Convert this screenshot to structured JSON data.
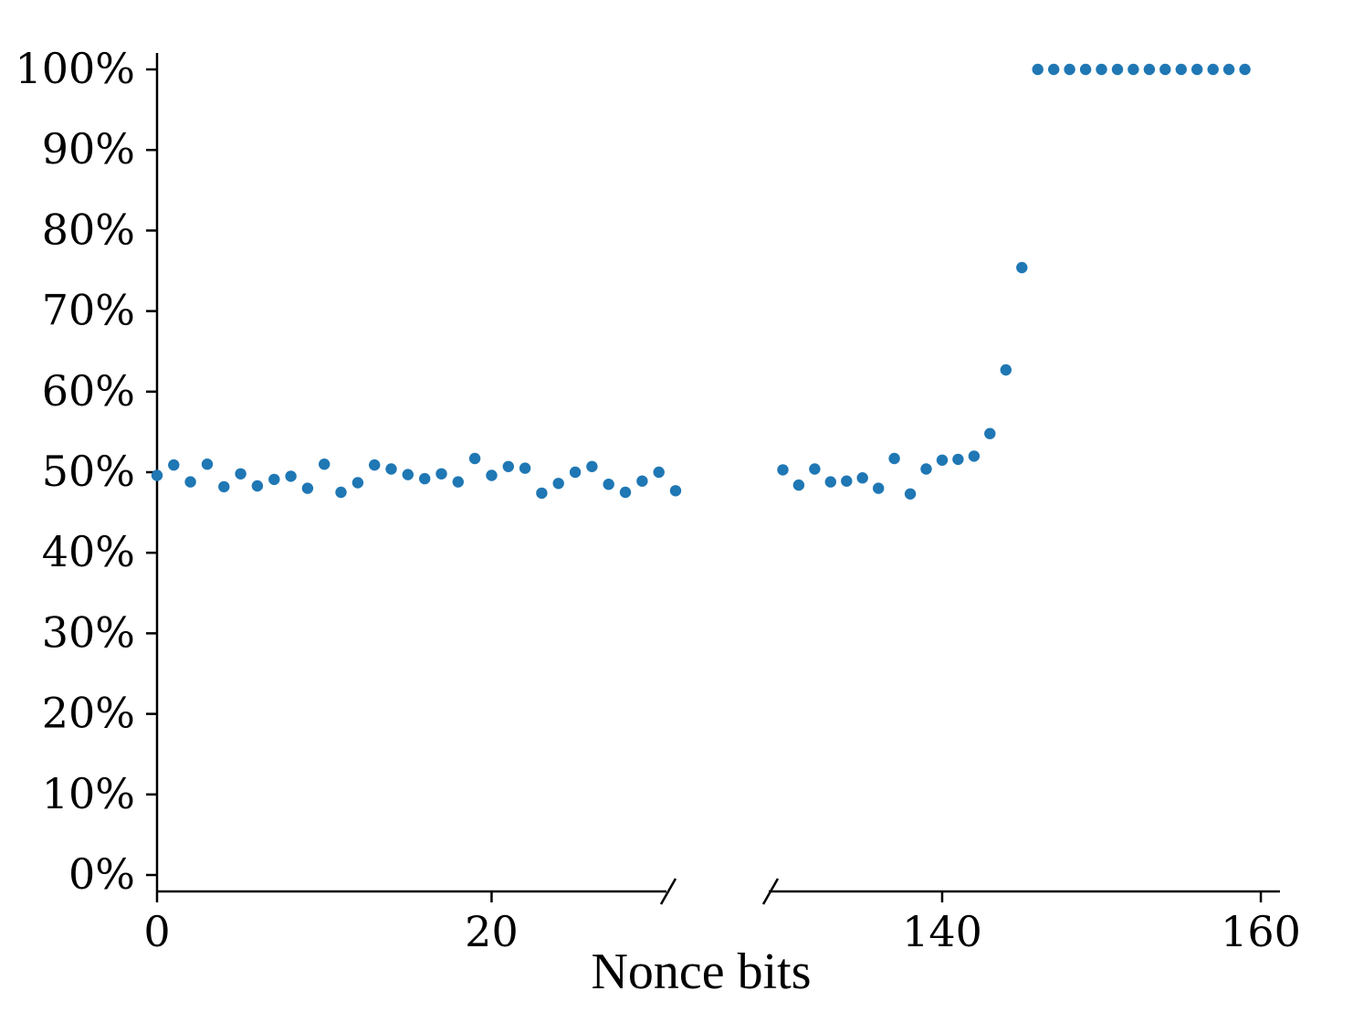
{
  "chart_data": {
    "type": "scatter",
    "xlabel": "Nonce bits",
    "ylabel": "",
    "ylim": [
      0,
      100
    ],
    "y_format": "percent",
    "y_ticks": [
      0,
      10,
      20,
      30,
      40,
      50,
      60,
      70,
      80,
      90,
      100
    ],
    "y_tick_labels": [
      "0%",
      "10%",
      "20%",
      "30%",
      "40%",
      "50%",
      "60%",
      "70%",
      "80%",
      "90%",
      "100%"
    ],
    "x_ticks": [
      0,
      20,
      140,
      160
    ],
    "x_tick_labels": [
      "0",
      "20",
      "140",
      "160"
    ],
    "broken_x_axis": true,
    "x_segments": [
      {
        "xlim": [
          0,
          31
        ]
      },
      {
        "xlim": [
          129,
          161.2
        ]
      }
    ],
    "grid": false,
    "marker_color": "#1f77b4",
    "series": [
      {
        "x": [
          0,
          1,
          2,
          3,
          4,
          5,
          6,
          7,
          8,
          9,
          10,
          11,
          12,
          13,
          14,
          15,
          16,
          17,
          18,
          19,
          20,
          21,
          22,
          23,
          24,
          25,
          26,
          27,
          28,
          29,
          30,
          31,
          130,
          131,
          132,
          133,
          134,
          135,
          136,
          137,
          138,
          139,
          140,
          141,
          142,
          143,
          144,
          145,
          146,
          147,
          148,
          149,
          150,
          151,
          152,
          153,
          154,
          155,
          156,
          157,
          158,
          159
        ],
        "y": [
          49.6,
          50.9,
          48.8,
          51.0,
          48.2,
          49.8,
          48.3,
          49.1,
          49.5,
          48.0,
          51.0,
          47.5,
          48.7,
          50.9,
          50.4,
          49.7,
          49.2,
          49.8,
          48.8,
          51.7,
          49.6,
          50.7,
          50.5,
          47.4,
          48.6,
          50.0,
          50.7,
          48.5,
          47.5,
          48.9,
          50.0,
          47.7,
          50.3,
          48.4,
          50.4,
          48.8,
          48.9,
          49.3,
          48.0,
          51.7,
          47.3,
          50.4,
          51.5,
          51.6,
          52.0,
          54.8,
          62.7,
          75.4,
          100,
          100,
          100,
          100,
          100,
          100,
          100,
          100,
          100,
          100,
          100,
          100,
          100,
          100
        ]
      }
    ]
  }
}
